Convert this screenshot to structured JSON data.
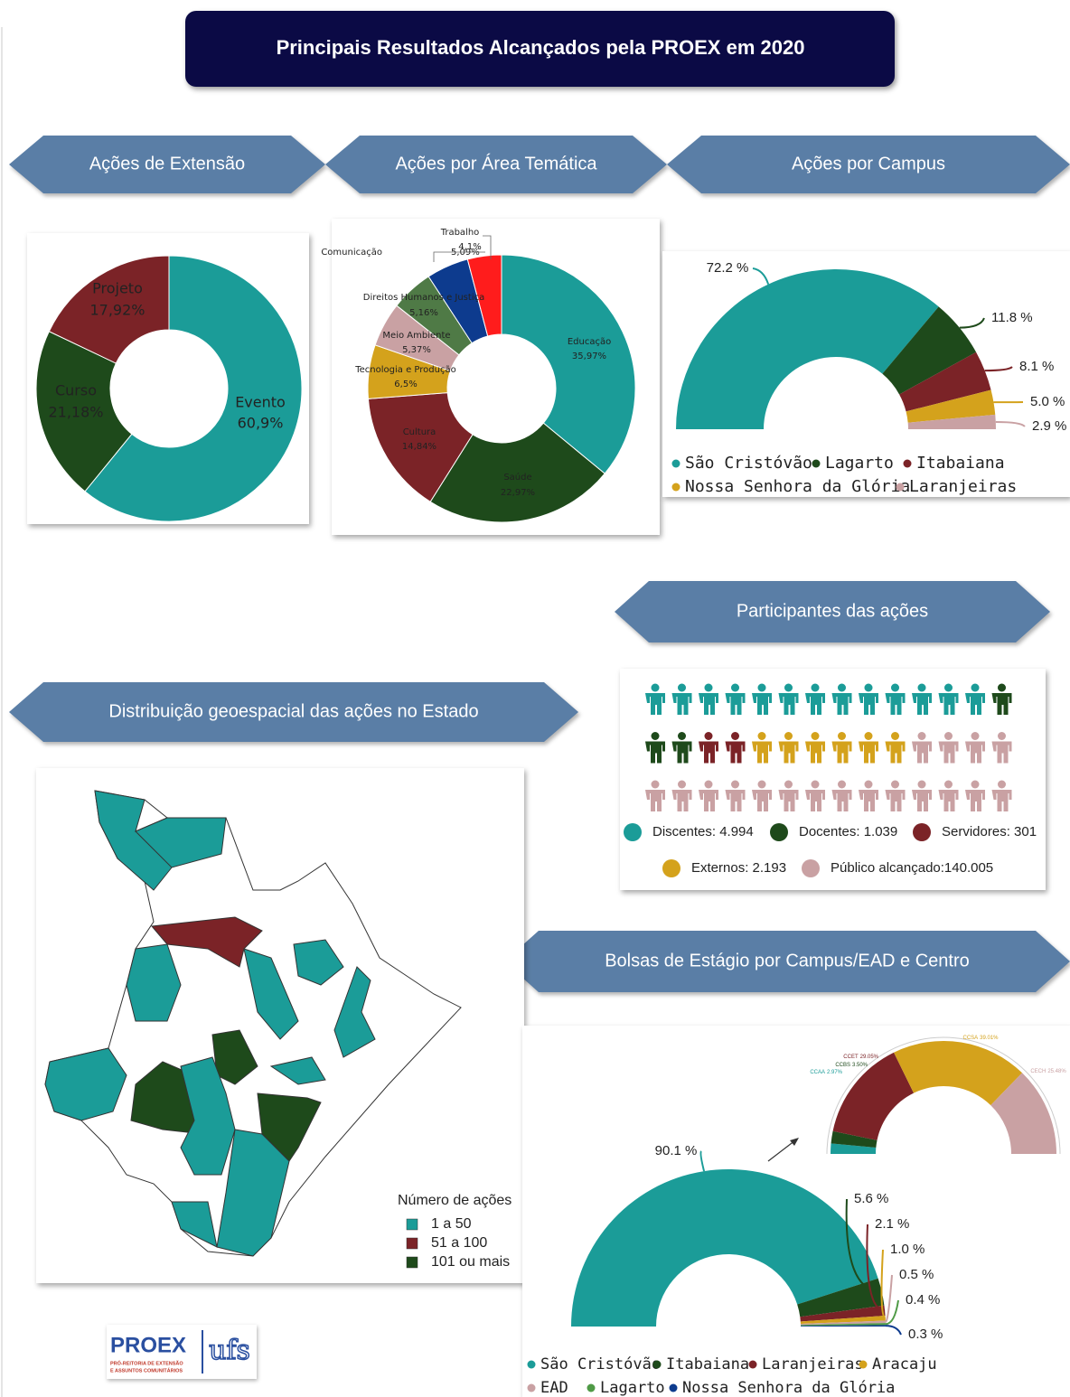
{
  "title": "Principais Resultados Alcançados pela PROEX em 2020",
  "chart_data": [
    {
      "type": "donut",
      "title": "Ações de Extensão",
      "categories": [
        "Evento",
        "Curso",
        "Projeto"
      ],
      "values": [
        60.9,
        21.18,
        17.92
      ],
      "value_labels": [
        "60,9%",
        "21,18%",
        "17,92%"
      ],
      "colors": [
        "#1b9c98",
        "#1e4a1b",
        "#7b2327"
      ]
    },
    {
      "type": "donut",
      "title": "Ações por Área Temática",
      "categories": [
        "Educação",
        "Saúde",
        "Cultura",
        "Tecnologia e Produção",
        "Meio Ambiente",
        "Direitos Humanos e Justiça",
        "Comunicação",
        "Trabalho"
      ],
      "values": [
        35.97,
        22.97,
        14.84,
        6.5,
        5.37,
        5.16,
        5.09,
        4.1
      ],
      "value_labels": [
        "35,97%",
        "22,97%",
        "14,84%",
        "6,5%",
        "5,37%",
        "5,16%",
        "5,09%",
        "4,1%"
      ],
      "colors": [
        "#1b9c98",
        "#1e4a1b",
        "#7b2327",
        "#d4a21c",
        "#c9a1a3",
        "#4f7a46",
        "#0d3b8e",
        "#ff1c1c"
      ]
    },
    {
      "type": "half-donut",
      "title": "Ações por Campus",
      "categories": [
        "São Cristóvão",
        "Lagarto",
        "Itabaiana",
        "Nossa Senhora da Glória",
        "Laranjeiras"
      ],
      "values": [
        72.2,
        11.8,
        8.1,
        5.0,
        2.9
      ],
      "value_labels": [
        "72.2 %",
        "11.8 %",
        "8.1 %",
        "5.0 %",
        "2.9 %"
      ],
      "colors": [
        "#1b9c98",
        "#1e4a1b",
        "#7b2327",
        "#d4a21c",
        "#c9a1a3"
      ]
    },
    {
      "type": "pictogram",
      "title": "Participantes das ações",
      "series": [
        {
          "name": "Discentes: 4.994",
          "color": "#1b9c98",
          "icons": 13
        },
        {
          "name": "Docentes: 1.039",
          "color": "#1e4a1b",
          "icons": 3
        },
        {
          "name": "Servidores: 301",
          "color": "#7b2327",
          "icons": 2
        },
        {
          "name": "Externos: 2.193",
          "color": "#d4a21c",
          "icons": 6
        },
        {
          "name": "Público alcançado:140.005",
          "color": "#c9a1a3",
          "icons": 18
        }
      ]
    },
    {
      "type": "half-donut",
      "title": "Bolsas de Estágio por Campus/EAD e Centro",
      "categories": [
        "São Cristóvão",
        "Itabaiana",
        "Laranjeiras",
        "Aracaju",
        "EAD",
        "Lagarto",
        "Nossa Senhora da Glória"
      ],
      "values": [
        90.1,
        5.6,
        2.1,
        1.0,
        0.5,
        0.4,
        0.3
      ],
      "value_labels": [
        "90.1 %",
        "5.6 %",
        "2.1 %",
        "1.0 %",
        "0.5 %",
        "0.4 %",
        "0.3 %"
      ],
      "colors": [
        "#1b9c98",
        "#1e4a1b",
        "#7b2327",
        "#d4a21c",
        "#c9a1a3",
        "#4f9a46",
        "#0d3b8e"
      ],
      "inset": {
        "categories": [
          "CCAA",
          "CCBS",
          "CCET",
          "CCSA",
          "CECH"
        ],
        "values": [
          2.97,
          3.5,
          29.05,
          39.01,
          25.48
        ],
        "value_labels": [
          "2.97%",
          "3.50%",
          "29.05%",
          "39.01%",
          "25.48%"
        ],
        "colors": [
          "#1b9c98",
          "#1e4a1b",
          "#7b2327",
          "#d4a21c",
          "#c9a1a3"
        ]
      }
    }
  ],
  "map": {
    "title": "Distribuição geoespacial das ações no Estado",
    "legend_title": "Número de ações",
    "legend": [
      {
        "label": "1 a 50",
        "color": "#1b9c98"
      },
      {
        "label": "51 a 100",
        "color": "#7b2327"
      },
      {
        "label": "101 ou mais",
        "color": "#1e4a1b"
      }
    ]
  },
  "logo": {
    "name": "PROEX",
    "subtitle_1": "PRÓ-REITORIA DE EXTENSÃO",
    "subtitle_2": "E ASSUNTOS COMUNITÁRIOS",
    "mark": "ufs"
  }
}
